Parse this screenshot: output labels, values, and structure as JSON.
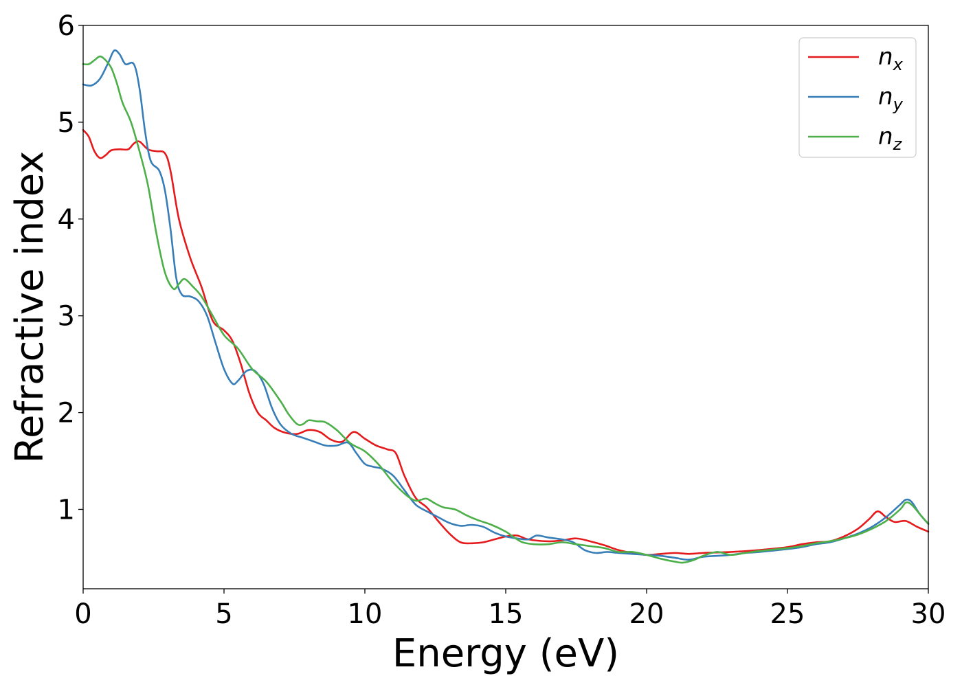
{
  "chart_data": {
    "type": "line",
    "title": "",
    "xlabel": "Energy (eV)",
    "ylabel": "Refractive index",
    "xlim": [
      0,
      30
    ],
    "ylim": [
      0.18,
      6.0
    ],
    "xticks": [
      0,
      5,
      10,
      15,
      20,
      25,
      30
    ],
    "yticks": [
      1,
      2,
      3,
      4,
      5,
      6
    ],
    "grid": false,
    "legend_position": "top-right",
    "series": [
      {
        "name": "n_x",
        "label_main": "n",
        "label_sub": "x",
        "color": "#e41a1c",
        "points": [
          [
            0,
            4.92
          ],
          [
            0.2,
            4.85
          ],
          [
            0.4,
            4.7
          ],
          [
            0.6,
            4.63
          ],
          [
            0.8,
            4.66
          ],
          [
            1.0,
            4.71
          ],
          [
            1.3,
            4.72
          ],
          [
            1.6,
            4.72
          ],
          [
            1.8,
            4.78
          ],
          [
            2.0,
            4.8
          ],
          [
            2.3,
            4.72
          ],
          [
            2.6,
            4.7
          ],
          [
            2.9,
            4.68
          ],
          [
            3.1,
            4.5
          ],
          [
            3.4,
            4.0
          ],
          [
            3.8,
            3.6
          ],
          [
            4.2,
            3.3
          ],
          [
            4.6,
            2.95
          ],
          [
            5.0,
            2.85
          ],
          [
            5.3,
            2.74
          ],
          [
            5.6,
            2.5
          ],
          [
            5.9,
            2.2
          ],
          [
            6.2,
            2.0
          ],
          [
            6.5,
            1.92
          ],
          [
            6.8,
            1.84
          ],
          [
            7.2,
            1.79
          ],
          [
            7.6,
            1.78
          ],
          [
            8.0,
            1.82
          ],
          [
            8.4,
            1.8
          ],
          [
            8.8,
            1.72
          ],
          [
            9.2,
            1.7
          ],
          [
            9.6,
            1.8
          ],
          [
            10.0,
            1.73
          ],
          [
            10.4,
            1.66
          ],
          [
            10.8,
            1.62
          ],
          [
            11.1,
            1.58
          ],
          [
            11.4,
            1.35
          ],
          [
            11.8,
            1.12
          ],
          [
            12.2,
            1.02
          ],
          [
            12.6,
            0.88
          ],
          [
            13.0,
            0.75
          ],
          [
            13.4,
            0.66
          ],
          [
            13.8,
            0.65
          ],
          [
            14.2,
            0.66
          ],
          [
            14.6,
            0.69
          ],
          [
            15.0,
            0.72
          ],
          [
            15.4,
            0.73
          ],
          [
            15.8,
            0.69
          ],
          [
            16.5,
            0.67
          ],
          [
            17.0,
            0.68
          ],
          [
            17.5,
            0.7
          ],
          [
            18.0,
            0.67
          ],
          [
            18.5,
            0.63
          ],
          [
            19.0,
            0.58
          ],
          [
            19.5,
            0.55
          ],
          [
            20.0,
            0.53
          ],
          [
            20.5,
            0.54
          ],
          [
            21.0,
            0.55
          ],
          [
            21.5,
            0.54
          ],
          [
            22.0,
            0.55
          ],
          [
            23.0,
            0.56
          ],
          [
            24.0,
            0.58
          ],
          [
            25.0,
            0.61
          ],
          [
            25.5,
            0.64
          ],
          [
            26.0,
            0.66
          ],
          [
            26.5,
            0.67
          ],
          [
            27.0,
            0.72
          ],
          [
            27.5,
            0.8
          ],
          [
            27.9,
            0.9
          ],
          [
            28.2,
            0.98
          ],
          [
            28.5,
            0.92
          ],
          [
            28.8,
            0.87
          ],
          [
            29.2,
            0.88
          ],
          [
            29.6,
            0.82
          ],
          [
            30.0,
            0.77
          ]
        ]
      },
      {
        "name": "n_y",
        "label_main": "n",
        "label_sub": "y",
        "color": "#377eb8",
        "points": [
          [
            0,
            5.39
          ],
          [
            0.3,
            5.38
          ],
          [
            0.6,
            5.45
          ],
          [
            0.9,
            5.62
          ],
          [
            1.1,
            5.74
          ],
          [
            1.3,
            5.7
          ],
          [
            1.5,
            5.6
          ],
          [
            1.8,
            5.6
          ],
          [
            2.0,
            5.35
          ],
          [
            2.2,
            4.9
          ],
          [
            2.4,
            4.6
          ],
          [
            2.7,
            4.5
          ],
          [
            2.9,
            4.3
          ],
          [
            3.1,
            3.9
          ],
          [
            3.3,
            3.4
          ],
          [
            3.5,
            3.22
          ],
          [
            3.8,
            3.2
          ],
          [
            4.1,
            3.15
          ],
          [
            4.4,
            3.0
          ],
          [
            4.7,
            2.72
          ],
          [
            5.0,
            2.45
          ],
          [
            5.3,
            2.3
          ],
          [
            5.5,
            2.33
          ],
          [
            5.8,
            2.43
          ],
          [
            6.1,
            2.43
          ],
          [
            6.4,
            2.3
          ],
          [
            6.7,
            2.05
          ],
          [
            7.0,
            1.88
          ],
          [
            7.4,
            1.78
          ],
          [
            7.8,
            1.74
          ],
          [
            8.2,
            1.7
          ],
          [
            8.6,
            1.66
          ],
          [
            9.0,
            1.66
          ],
          [
            9.4,
            1.69
          ],
          [
            9.7,
            1.58
          ],
          [
            10.0,
            1.47
          ],
          [
            10.3,
            1.44
          ],
          [
            10.6,
            1.42
          ],
          [
            11.0,
            1.35
          ],
          [
            11.4,
            1.2
          ],
          [
            11.8,
            1.05
          ],
          [
            12.2,
            0.98
          ],
          [
            12.6,
            0.92
          ],
          [
            13.0,
            0.86
          ],
          [
            13.4,
            0.83
          ],
          [
            13.8,
            0.84
          ],
          [
            14.2,
            0.82
          ],
          [
            14.6,
            0.76
          ],
          [
            15.0,
            0.72
          ],
          [
            15.4,
            0.7
          ],
          [
            15.8,
            0.69
          ],
          [
            16.1,
            0.73
          ],
          [
            16.5,
            0.71
          ],
          [
            17.0,
            0.69
          ],
          [
            17.4,
            0.66
          ],
          [
            17.8,
            0.58
          ],
          [
            18.2,
            0.55
          ],
          [
            18.6,
            0.56
          ],
          [
            19.0,
            0.55
          ],
          [
            19.5,
            0.54
          ],
          [
            20.0,
            0.53
          ],
          [
            20.5,
            0.52
          ],
          [
            21.0,
            0.5
          ],
          [
            21.5,
            0.48
          ],
          [
            22.0,
            0.51
          ],
          [
            22.5,
            0.52
          ],
          [
            23.0,
            0.53
          ],
          [
            23.5,
            0.55
          ],
          [
            24.0,
            0.56
          ],
          [
            25.0,
            0.59
          ],
          [
            25.5,
            0.61
          ],
          [
            26.0,
            0.64
          ],
          [
            26.5,
            0.66
          ],
          [
            27.0,
            0.7
          ],
          [
            27.5,
            0.75
          ],
          [
            28.0,
            0.82
          ],
          [
            28.5,
            0.92
          ],
          [
            29.0,
            1.05
          ],
          [
            29.2,
            1.1
          ],
          [
            29.4,
            1.08
          ],
          [
            29.7,
            0.95
          ],
          [
            30.0,
            0.85
          ]
        ]
      },
      {
        "name": "n_z",
        "label_main": "n",
        "label_sub": "z",
        "color": "#4daf4a",
        "points": [
          [
            0,
            5.6
          ],
          [
            0.2,
            5.6
          ],
          [
            0.4,
            5.64
          ],
          [
            0.6,
            5.68
          ],
          [
            0.8,
            5.64
          ],
          [
            1.0,
            5.56
          ],
          [
            1.2,
            5.4
          ],
          [
            1.4,
            5.2
          ],
          [
            1.7,
            5.0
          ],
          [
            2.0,
            4.7
          ],
          [
            2.3,
            4.35
          ],
          [
            2.6,
            3.85
          ],
          [
            2.9,
            3.45
          ],
          [
            3.2,
            3.28
          ],
          [
            3.4,
            3.33
          ],
          [
            3.6,
            3.38
          ],
          [
            3.9,
            3.3
          ],
          [
            4.2,
            3.2
          ],
          [
            4.6,
            3.0
          ],
          [
            5.0,
            2.8
          ],
          [
            5.5,
            2.66
          ],
          [
            6.0,
            2.45
          ],
          [
            6.5,
            2.32
          ],
          [
            7.0,
            2.12
          ],
          [
            7.3,
            1.98
          ],
          [
            7.6,
            1.88
          ],
          [
            7.8,
            1.88
          ],
          [
            8.0,
            1.92
          ],
          [
            8.3,
            1.91
          ],
          [
            8.6,
            1.9
          ],
          [
            9.0,
            1.82
          ],
          [
            9.5,
            1.68
          ],
          [
            10.0,
            1.6
          ],
          [
            10.5,
            1.46
          ],
          [
            11.0,
            1.28
          ],
          [
            11.5,
            1.14
          ],
          [
            11.8,
            1.09
          ],
          [
            12.0,
            1.1
          ],
          [
            12.2,
            1.11
          ],
          [
            12.5,
            1.06
          ],
          [
            12.8,
            1.02
          ],
          [
            13.2,
            1.0
          ],
          [
            13.6,
            0.94
          ],
          [
            14.0,
            0.89
          ],
          [
            14.5,
            0.84
          ],
          [
            15.0,
            0.77
          ],
          [
            15.3,
            0.71
          ],
          [
            15.6,
            0.66
          ],
          [
            16.0,
            0.64
          ],
          [
            16.5,
            0.64
          ],
          [
            17.0,
            0.66
          ],
          [
            17.5,
            0.64
          ],
          [
            18.0,
            0.62
          ],
          [
            18.5,
            0.6
          ],
          [
            19.0,
            0.56
          ],
          [
            19.5,
            0.56
          ],
          [
            20.0,
            0.53
          ],
          [
            20.5,
            0.49
          ],
          [
            21.0,
            0.46
          ],
          [
            21.3,
            0.45
          ],
          [
            21.7,
            0.48
          ],
          [
            22.0,
            0.52
          ],
          [
            22.5,
            0.56
          ],
          [
            23.0,
            0.53
          ],
          [
            23.5,
            0.55
          ],
          [
            24.0,
            0.57
          ],
          [
            25.0,
            0.6
          ],
          [
            25.5,
            0.62
          ],
          [
            26.0,
            0.65
          ],
          [
            26.5,
            0.67
          ],
          [
            27.0,
            0.7
          ],
          [
            27.5,
            0.74
          ],
          [
            28.0,
            0.8
          ],
          [
            28.5,
            0.88
          ],
          [
            29.0,
            1.0
          ],
          [
            29.2,
            1.07
          ],
          [
            29.4,
            1.05
          ],
          [
            29.7,
            0.95
          ],
          [
            30.0,
            0.85
          ]
        ]
      }
    ]
  }
}
